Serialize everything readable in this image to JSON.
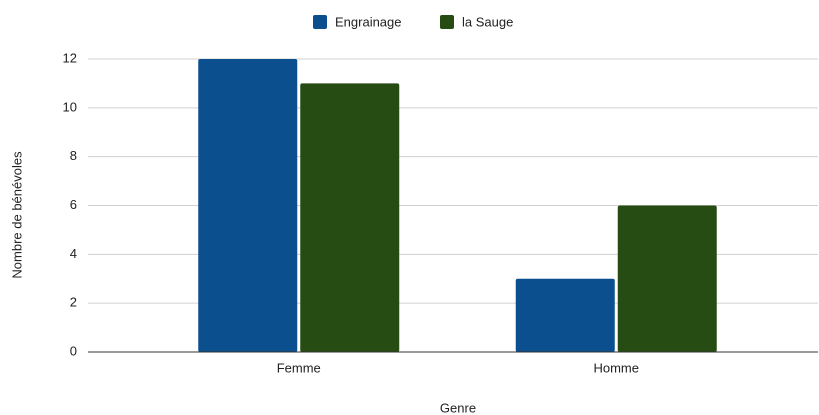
{
  "chart_data": {
    "type": "bar",
    "categories": [
      "Femme",
      "Homme"
    ],
    "series": [
      {
        "name": "Engrainage",
        "color": "#0b4f8f",
        "values": [
          12,
          3
        ]
      },
      {
        "name": "la Sauge",
        "color": "#264c14",
        "values": [
          11,
          6
        ]
      }
    ],
    "xlabel": "Genre",
    "ylabel": "Nombre de bénévoles",
    "ylim": [
      0,
      12
    ],
    "yticks": [
      0,
      2,
      4,
      6,
      8,
      10,
      12
    ],
    "grid": true,
    "legend": "top"
  }
}
